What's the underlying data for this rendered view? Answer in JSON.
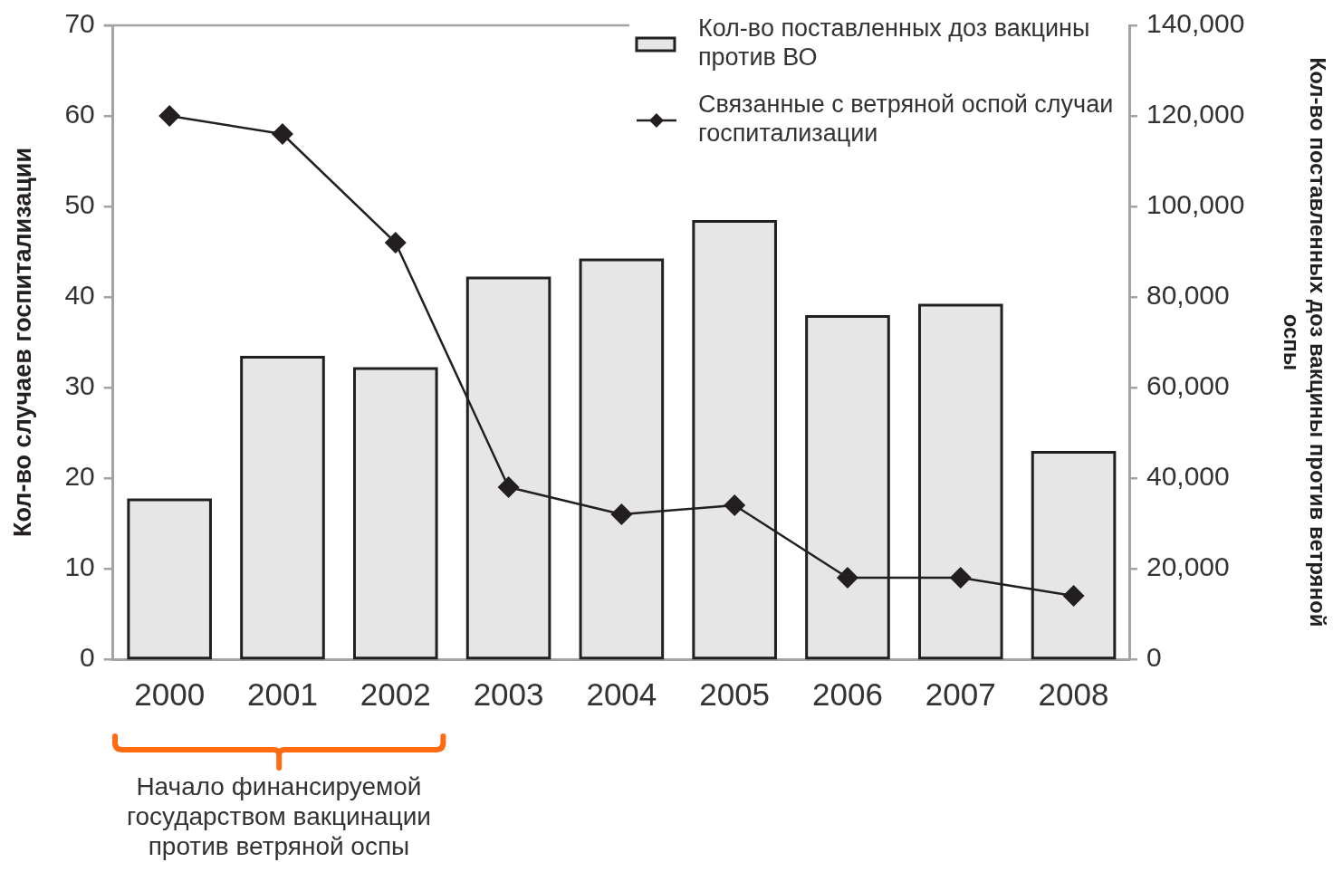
{
  "chart_data": {
    "type": "bar",
    "categories": [
      "2000",
      "2001",
      "2002",
      "2003",
      "2004",
      "2005",
      "2006",
      "2007",
      "2008"
    ],
    "series": [
      {
        "name": "Кол-во поставленных доз вакцины против ВО",
        "axis": "y2",
        "color": "#e6e6e6",
        "values": [
          35500,
          67000,
          64500,
          84500,
          88500,
          97000,
          76000,
          78500,
          46000
        ]
      },
      {
        "name": "Связанные с ветряной оспой случаи госпитализации",
        "type": "line",
        "color": "#231f20",
        "values": [
          60,
          58,
          46,
          19,
          16,
          17,
          9,
          9,
          7
        ]
      }
    ],
    "ylabel": "Кол-во случаев госпитализации",
    "y2label": "Кол-во поставленных доз вакцины против ветряной оспы",
    "ylim": [
      0,
      70
    ],
    "yticks": [
      0,
      10,
      20,
      30,
      40,
      50,
      60,
      70
    ],
    "y2lim": [
      0,
      140000
    ],
    "y2ticks": [
      0,
      {
        "value": 20000,
        "label": "20,000"
      },
      {
        "value": 40000,
        "label": "40,000"
      },
      {
        "value": 60000,
        "label": "60,000"
      },
      {
        "value": 80000,
        "label": "80,000"
      },
      {
        "value": 100000,
        "label": "100,000"
      },
      {
        "value": 120000,
        "label": "120,000"
      },
      {
        "value": 140000,
        "label": "140,000"
      }
    ],
    "annotations": [
      "Начало финансируемой государством вакцинации против ветряной оспы"
    ],
    "legend": "top right",
    "grid": false,
    "marker": "diamond",
    "line_style": "solid"
  }
}
